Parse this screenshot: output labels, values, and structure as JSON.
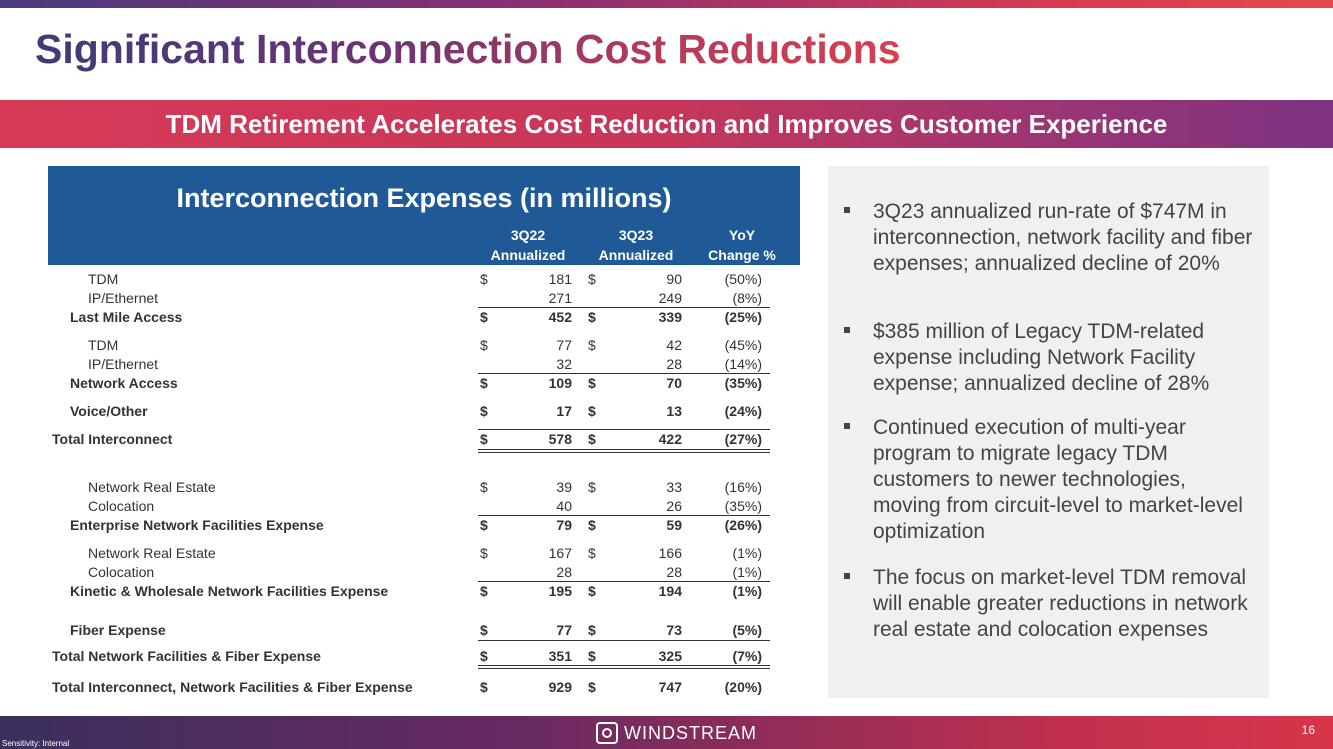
{
  "title": "Significant Interconnection Cost Reductions",
  "banner": "TDM Retirement Accelerates Cost Reduction and Improves Customer Experience",
  "table": {
    "title": "Interconnection Expenses (in millions)",
    "columns": [
      {
        "line1": "3Q22",
        "line2": "Annualized"
      },
      {
        "line1": "3Q23",
        "line2": "Annualized"
      },
      {
        "line1": "YoY",
        "line2": "Change %"
      }
    ],
    "rows": [
      {
        "label": "TDM",
        "d1": "$",
        "v1": "181",
        "d2": "$",
        "v2": "90",
        "change": "(50%)"
      },
      {
        "label": "IP/Ethernet",
        "d1": "",
        "v1": "271",
        "d2": "",
        "v2": "249",
        "change": "(8%)"
      },
      {
        "label": "Last Mile Access",
        "d1": "$",
        "v1": "452",
        "d2": "$",
        "v2": "339",
        "change": "(25%)"
      },
      {
        "label": "TDM",
        "d1": "$",
        "v1": "77",
        "d2": "$",
        "v2": "42",
        "change": "(45%)"
      },
      {
        "label": "IP/Ethernet",
        "d1": "",
        "v1": "32",
        "d2": "",
        "v2": "28",
        "change": "(14%)"
      },
      {
        "label": "Network Access",
        "d1": "$",
        "v1": "109",
        "d2": "$",
        "v2": "70",
        "change": "(35%)"
      },
      {
        "label": "Voice/Other",
        "d1": "$",
        "v1": "17",
        "d2": "$",
        "v2": "13",
        "change": "(24%)"
      },
      {
        "label": "Total Interconnect",
        "d1": "$",
        "v1": "578",
        "d2": "$",
        "v2": "422",
        "change": "(27%)"
      },
      {
        "label": "Network Real Estate",
        "d1": "$",
        "v1": "39",
        "d2": "$",
        "v2": "33",
        "change": "(16%)"
      },
      {
        "label": "Colocation",
        "d1": "",
        "v1": "40",
        "d2": "",
        "v2": "26",
        "change": "(35%)"
      },
      {
        "label": "Enterprise Network Facilities Expense",
        "d1": "$",
        "v1": "79",
        "d2": "$",
        "v2": "59",
        "change": "(26%)"
      },
      {
        "label": "Network Real Estate",
        "d1": "$",
        "v1": "167",
        "d2": "$",
        "v2": "166",
        "change": "(1%)"
      },
      {
        "label": "Colocation",
        "d1": "",
        "v1": "28",
        "d2": "",
        "v2": "28",
        "change": "(1%)"
      },
      {
        "label": "Kinetic & Wholesale Network Facilities Expense",
        "d1": "$",
        "v1": "195",
        "d2": "$",
        "v2": "194",
        "change": "(1%)"
      },
      {
        "label": "Fiber Expense",
        "d1": "$",
        "v1": "77",
        "d2": "$",
        "v2": "73",
        "change": "(5%)"
      },
      {
        "label": "Total Network Facilities & Fiber Expense",
        "d1": "$",
        "v1": "351",
        "d2": "$",
        "v2": "325",
        "change": "(7%)"
      },
      {
        "label": "Total Interconnect, Network Facilities & Fiber Expense",
        "d1": "$",
        "v1": "929",
        "d2": "$",
        "v2": "747",
        "change": "(20%)"
      }
    ]
  },
  "bullets": [
    "3Q23 annualized run-rate of $747M in interconnection, network facility and fiber expenses; annualized decline of 20%",
    "$385 million of Legacy TDM-related expense including Network Facility expense; annualized decline of 28%",
    "Continued execution of multi-year program to migrate legacy TDM customers to newer technologies, moving from circuit-level to market-level optimization",
    "The focus on market-level TDM removal will enable greater reductions in network real estate and colocation expenses"
  ],
  "footer": {
    "sensitivity": "Sensitivity: Internal",
    "logo": "WINDSTREAM",
    "page_number": "16"
  }
}
